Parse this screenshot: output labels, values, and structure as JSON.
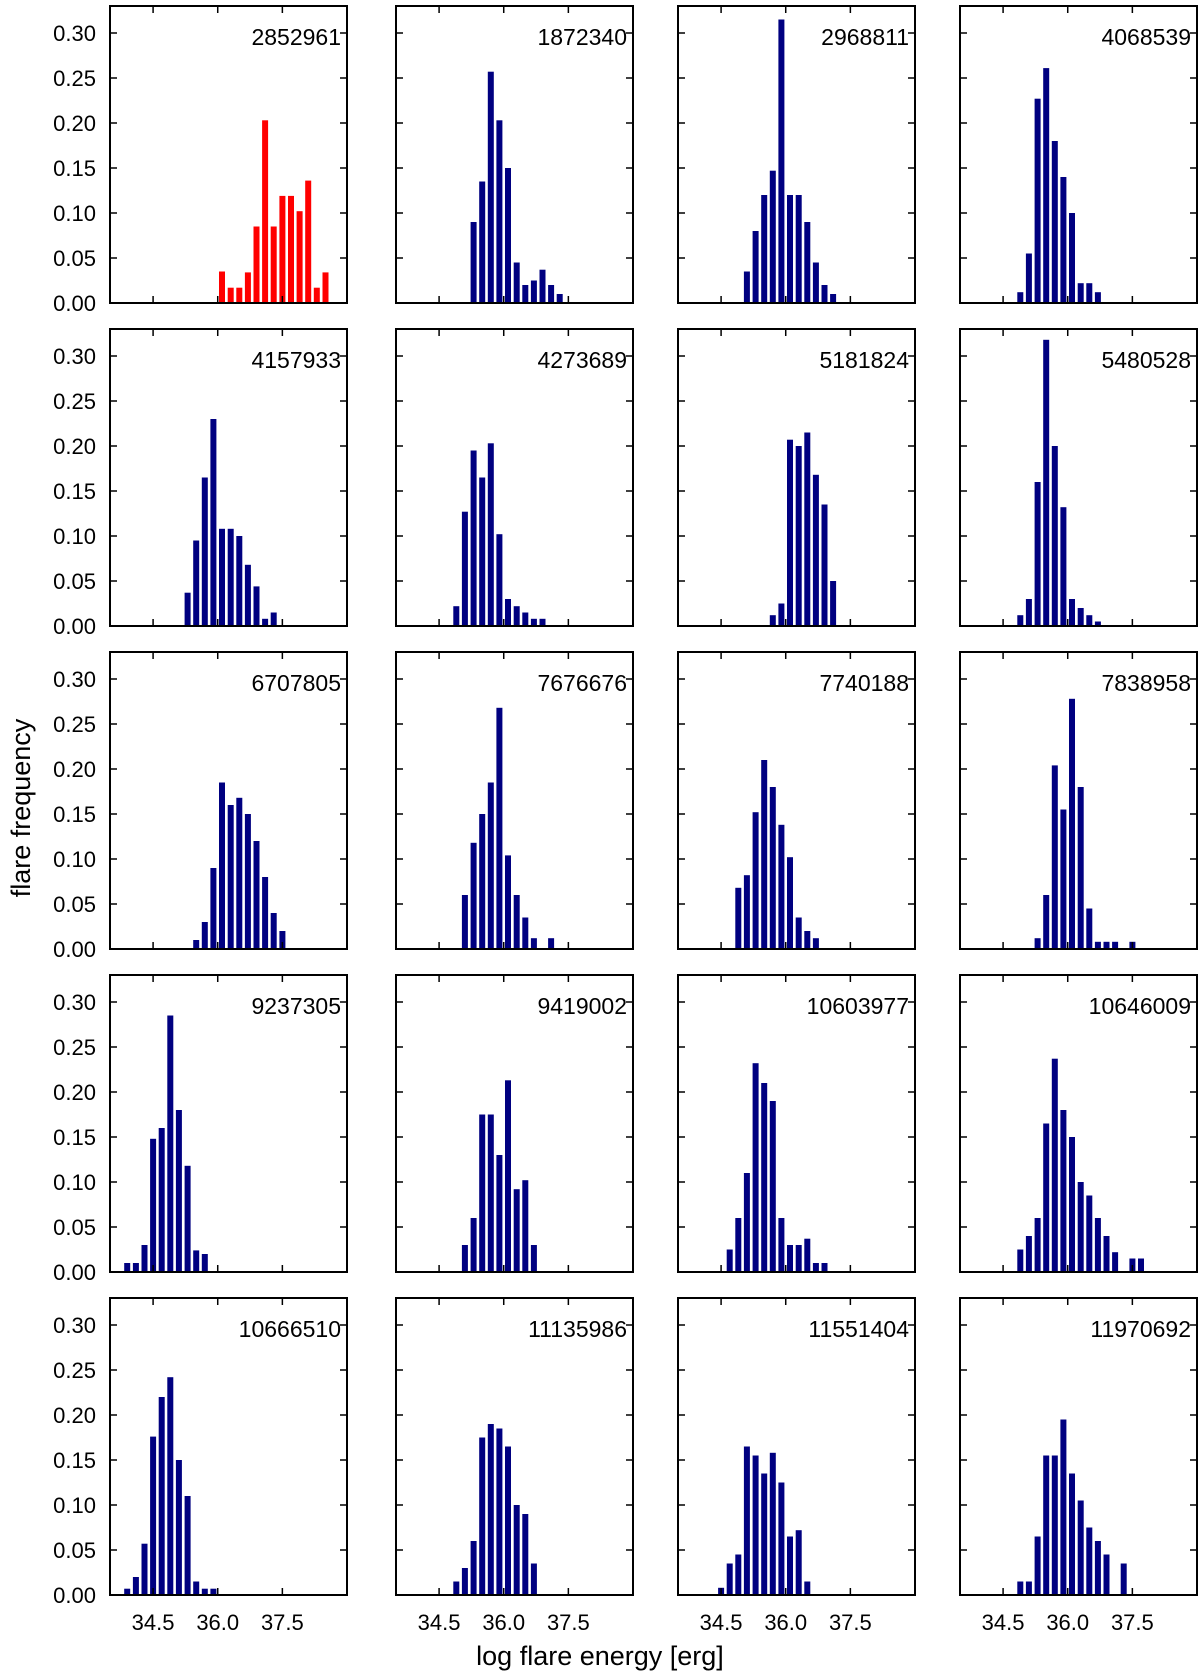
{
  "figure": {
    "xlabel": "log flare energy [erg]",
    "ylabel": "flare frequency"
  },
  "colors": {
    "highlight": "#ff0000",
    "default": "#000080",
    "frame": "#000000"
  },
  "chart_data": {
    "type": "bar",
    "layout": "grid 5 rows x 4 columns, shared axes",
    "xlim": [
      33.5,
      39.0
    ],
    "ylim": [
      0,
      0.33
    ],
    "xticks": [
      34.5,
      36.0,
      37.5
    ],
    "xtick_labels": [
      "34.5",
      "36.0",
      "37.5"
    ],
    "yticks": [
      0,
      0.05,
      0.1,
      0.15,
      0.2,
      0.25,
      0.3
    ],
    "ytick_labels": [
      "0.00",
      "0.05",
      "0.10",
      "0.15",
      "0.20",
      "0.25",
      "0.30"
    ],
    "bin_width": 0.2,
    "panels": [
      {
        "label": "2852961",
        "color": "highlight",
        "x": [
          36.1,
          36.3,
          36.5,
          36.7,
          36.9,
          37.1,
          37.3,
          37.5,
          37.7,
          37.9,
          38.1,
          38.3,
          38.5
        ],
        "values": [
          0.035,
          0.017,
          0.017,
          0.034,
          0.085,
          0.203,
          0.085,
          0.119,
          0.119,
          0.102,
          0.136,
          0.017,
          0.034
        ]
      },
      {
        "label": "1872340",
        "color": "default",
        "x": [
          35.3,
          35.5,
          35.7,
          35.9,
          36.1,
          36.3,
          36.5,
          36.7,
          36.9,
          37.1,
          37.3
        ],
        "values": [
          0.09,
          0.135,
          0.257,
          0.203,
          0.15,
          0.045,
          0.02,
          0.025,
          0.037,
          0.02,
          0.01
        ]
      },
      {
        "label": "2968811",
        "color": "default",
        "x": [
          35.1,
          35.3,
          35.5,
          35.7,
          35.9,
          36.1,
          36.3,
          36.5,
          36.7,
          36.9,
          37.1
        ],
        "values": [
          0.035,
          0.08,
          0.12,
          0.147,
          0.315,
          0.12,
          0.12,
          0.09,
          0.045,
          0.02,
          0.01
        ]
      },
      {
        "label": "4068539",
        "color": "default",
        "x": [
          34.9,
          35.1,
          35.3,
          35.5,
          35.7,
          35.9,
          36.1,
          36.3,
          36.5,
          36.7
        ],
        "values": [
          0.012,
          0.055,
          0.227,
          0.261,
          0.18,
          0.14,
          0.1,
          0.022,
          0.022,
          0.012
        ]
      },
      {
        "label": "4157933",
        "color": "default",
        "x": [
          35.3,
          35.5,
          35.7,
          35.9,
          36.1,
          36.3,
          36.5,
          36.7,
          36.9,
          37.1,
          37.3
        ],
        "values": [
          0.037,
          0.095,
          0.165,
          0.23,
          0.108,
          0.108,
          0.1,
          0.068,
          0.044,
          0.008,
          0.015
        ]
      },
      {
        "label": "4273689",
        "color": "default",
        "x": [
          34.9,
          35.1,
          35.3,
          35.5,
          35.7,
          35.9,
          36.1,
          36.3,
          36.5,
          36.7,
          36.9
        ],
        "values": [
          0.022,
          0.127,
          0.195,
          0.165,
          0.203,
          0.102,
          0.03,
          0.022,
          0.015,
          0.008,
          0.008
        ]
      },
      {
        "label": "5181824",
        "color": "default",
        "x": [
          35.7,
          35.9,
          36.1,
          36.3,
          36.5,
          36.7,
          36.9,
          37.1
        ],
        "values": [
          0.012,
          0.025,
          0.207,
          0.2,
          0.215,
          0.168,
          0.135,
          0.05
        ]
      },
      {
        "label": "5480528",
        "color": "default",
        "x": [
          34.9,
          35.1,
          35.3,
          35.5,
          35.7,
          35.9,
          36.1,
          36.3,
          36.5,
          36.7
        ],
        "values": [
          0.012,
          0.03,
          0.16,
          0.318,
          0.2,
          0.132,
          0.03,
          0.02,
          0.012,
          0.005
        ]
      },
      {
        "label": "6707805",
        "color": "default",
        "x": [
          35.5,
          35.7,
          35.9,
          36.1,
          36.3,
          36.5,
          36.7,
          36.9,
          37.1,
          37.3,
          37.5
        ],
        "values": [
          0.01,
          0.03,
          0.09,
          0.185,
          0.16,
          0.168,
          0.15,
          0.12,
          0.08,
          0.04,
          0.02
        ]
      },
      {
        "label": "7676676",
        "color": "default",
        "x": [
          35.1,
          35.3,
          35.5,
          35.7,
          35.9,
          36.1,
          36.3,
          36.5,
          36.7,
          37.1
        ],
        "values": [
          0.06,
          0.118,
          0.15,
          0.185,
          0.268,
          0.104,
          0.06,
          0.035,
          0.012,
          0.012
        ]
      },
      {
        "label": "7740188",
        "color": "default",
        "x": [
          34.9,
          35.1,
          35.3,
          35.5,
          35.7,
          35.9,
          36.1,
          36.3,
          36.5,
          36.7
        ],
        "values": [
          0.068,
          0.082,
          0.152,
          0.21,
          0.18,
          0.138,
          0.102,
          0.035,
          0.02,
          0.012
        ]
      },
      {
        "label": "7838958",
        "color": "default",
        "x": [
          35.3,
          35.5,
          35.7,
          35.9,
          36.1,
          36.3,
          36.5,
          36.7,
          36.9,
          37.1,
          37.5
        ],
        "values": [
          0.012,
          0.06,
          0.204,
          0.155,
          0.278,
          0.18,
          0.045,
          0.008,
          0.008,
          0.008,
          0.008
        ]
      },
      {
        "label": "9237305",
        "color": "default",
        "x": [
          33.9,
          34.1,
          34.3,
          34.5,
          34.7,
          34.9,
          35.1,
          35.3,
          35.5,
          35.7
        ],
        "values": [
          0.01,
          0.01,
          0.03,
          0.148,
          0.16,
          0.285,
          0.18,
          0.118,
          0.024,
          0.02
        ]
      },
      {
        "label": "9419002",
        "color": "default",
        "x": [
          35.1,
          35.3,
          35.5,
          35.7,
          35.9,
          36.1,
          36.3,
          36.5,
          36.7
        ],
        "values": [
          0.03,
          0.06,
          0.175,
          0.175,
          0.13,
          0.213,
          0.092,
          0.102,
          0.03
        ]
      },
      {
        "label": "10603977",
        "color": "default",
        "x": [
          34.7,
          34.9,
          35.1,
          35.3,
          35.5,
          35.7,
          35.9,
          36.1,
          36.3,
          36.5,
          36.7,
          36.9
        ],
        "values": [
          0.025,
          0.06,
          0.11,
          0.232,
          0.21,
          0.19,
          0.06,
          0.03,
          0.03,
          0.037,
          0.01,
          0.01
        ]
      },
      {
        "label": "10646009",
        "color": "default",
        "x": [
          34.9,
          35.1,
          35.3,
          35.5,
          35.7,
          35.9,
          36.1,
          36.3,
          36.5,
          36.7,
          36.9,
          37.1,
          37.5,
          37.7
        ],
        "values": [
          0.025,
          0.04,
          0.06,
          0.165,
          0.237,
          0.18,
          0.15,
          0.1,
          0.085,
          0.06,
          0.04,
          0.022,
          0.015,
          0.015
        ]
      },
      {
        "label": "10666510",
        "color": "default",
        "x": [
          33.9,
          34.1,
          34.3,
          34.5,
          34.7,
          34.9,
          35.1,
          35.3,
          35.5,
          35.7,
          35.9
        ],
        "values": [
          0.007,
          0.02,
          0.057,
          0.176,
          0.22,
          0.242,
          0.15,
          0.11,
          0.015,
          0.007,
          0.007
        ]
      },
      {
        "label": "11135986",
        "color": "default",
        "x": [
          34.9,
          35.1,
          35.3,
          35.5,
          35.7,
          35.9,
          36.1,
          36.3,
          36.5,
          36.7
        ],
        "values": [
          0.015,
          0.03,
          0.06,
          0.175,
          0.19,
          0.185,
          0.165,
          0.1,
          0.09,
          0.035
        ]
      },
      {
        "label": "11551404",
        "color": "default",
        "x": [
          34.5,
          34.7,
          34.9,
          35.1,
          35.3,
          35.5,
          35.7,
          35.9,
          36.1,
          36.3,
          36.5
        ],
        "values": [
          0.008,
          0.035,
          0.045,
          0.165,
          0.155,
          0.135,
          0.158,
          0.125,
          0.065,
          0.072,
          0.015
        ]
      },
      {
        "label": "11970692",
        "color": "default",
        "x": [
          34.9,
          35.1,
          35.3,
          35.5,
          35.7,
          35.9,
          36.1,
          36.3,
          36.5,
          36.7,
          36.9,
          37.3
        ],
        "values": [
          0.015,
          0.015,
          0.065,
          0.155,
          0.155,
          0.195,
          0.135,
          0.105,
          0.075,
          0.06,
          0.045,
          0.035
        ]
      }
    ]
  }
}
